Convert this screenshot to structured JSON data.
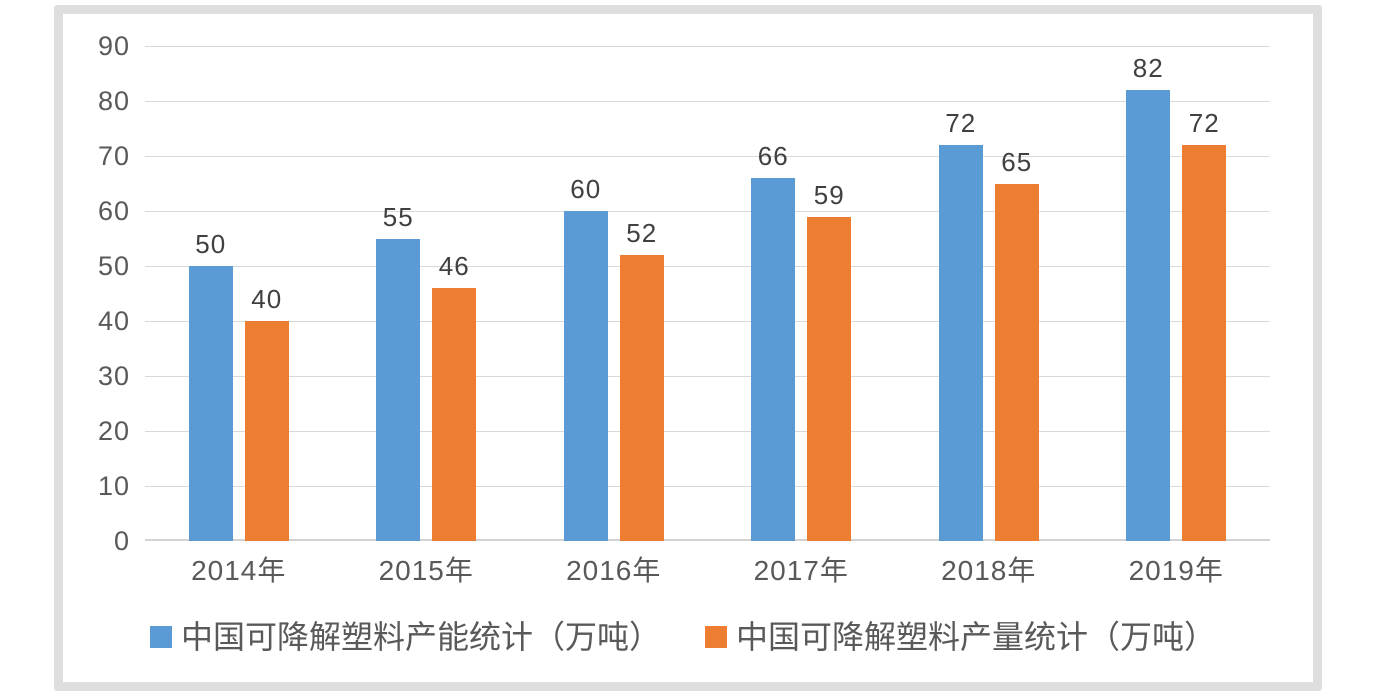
{
  "chart_data": {
    "type": "bar",
    "categories": [
      "2014年",
      "2015年",
      "2016年",
      "2017年",
      "2018年",
      "2019年"
    ],
    "series": [
      {
        "name": "中国可降解塑料产能统计（万吨）",
        "color": "#5B9BD5",
        "values": [
          50,
          55,
          60,
          66,
          72,
          82
        ]
      },
      {
        "name": "中国可降解塑料产量统计（万吨）",
        "color": "#ED7D31",
        "values": [
          40,
          46,
          52,
          59,
          65,
          72
        ]
      }
    ],
    "title": "",
    "xlabel": "",
    "ylabel": "",
    "ylim": [
      0,
      90
    ],
    "y_ticks": [
      0,
      10,
      20,
      30,
      40,
      50,
      60,
      70,
      80,
      90
    ],
    "grid": true,
    "data_labels": true,
    "legend_position": "bottom"
  },
  "colors": {
    "series_capacity": "#5B9BD5",
    "series_output": "#ED7D31",
    "gridline": "#d9d9d9",
    "axis_line": "#d3d3d3",
    "tick_text": "#595959",
    "data_label_text": "#404040",
    "legend_text": "#595959",
    "frame_border": "#dedede",
    "background": "#ffffff"
  }
}
